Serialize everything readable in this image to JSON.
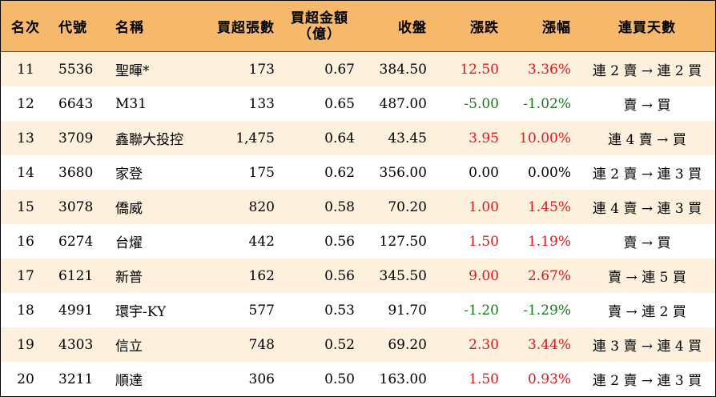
{
  "table": {
    "headers": {
      "rank": "名次",
      "code": "代號",
      "name": "名稱",
      "lots": "買超張數",
      "amount_line1": "買超金額",
      "amount_line2": "（億）",
      "close": "收盤",
      "change": "漲跌",
      "pct": "漲幅",
      "days": "連買天數"
    },
    "rows": [
      {
        "rank": "11",
        "code": "5536",
        "name": "聖暉*",
        "lots": "173",
        "amount": "0.67",
        "close": "384.50",
        "change": "12.50",
        "pct": "3.36%",
        "days": "連 2 賣 → 連 2 買"
      },
      {
        "rank": "12",
        "code": "6643",
        "name": "M31",
        "lots": "133",
        "amount": "0.65",
        "close": "487.00",
        "change": "-5.00",
        "pct": "-1.02%",
        "days": "賣 → 買"
      },
      {
        "rank": "13",
        "code": "3709",
        "name": "鑫聯大投控",
        "lots": "1,475",
        "amount": "0.64",
        "close": "43.45",
        "change": "3.95",
        "pct": "10.00%",
        "days": "連 4 賣 → 買"
      },
      {
        "rank": "14",
        "code": "3680",
        "name": "家登",
        "lots": "175",
        "amount": "0.62",
        "close": "356.00",
        "change": "0.00",
        "pct": "0.00%",
        "days": "連 2 賣 → 連 3 買"
      },
      {
        "rank": "15",
        "code": "3078",
        "name": "僑威",
        "lots": "820",
        "amount": "0.58",
        "close": "70.20",
        "change": "1.00",
        "pct": "1.45%",
        "days": "連 4 賣 → 連 3 買"
      },
      {
        "rank": "16",
        "code": "6274",
        "name": "台燿",
        "lots": "442",
        "amount": "0.56",
        "close": "127.50",
        "change": "1.50",
        "pct": "1.19%",
        "days": "賣 → 買"
      },
      {
        "rank": "17",
        "code": "6121",
        "name": "新普",
        "lots": "162",
        "amount": "0.56",
        "close": "345.50",
        "change": "9.00",
        "pct": "2.67%",
        "days": "賣 → 連 5 買"
      },
      {
        "rank": "18",
        "code": "4991",
        "name": "環宇-KY",
        "lots": "577",
        "amount": "0.53",
        "close": "91.70",
        "change": "-1.20",
        "pct": "-1.29%",
        "days": "賣 → 連 2 買"
      },
      {
        "rank": "19",
        "code": "4303",
        "name": "信立",
        "lots": "748",
        "amount": "0.52",
        "close": "69.20",
        "change": "2.30",
        "pct": "3.44%",
        "days": "連 3 賣 → 連 4 買"
      },
      {
        "rank": "20",
        "code": "3211",
        "name": "順達",
        "lots": "306",
        "amount": "0.50",
        "close": "163.00",
        "change": "1.50",
        "pct": "0.93%",
        "days": "連 2 賣 → 連 3 買"
      }
    ]
  },
  "colors": {
    "header_bg": "#f6b86b",
    "stripe_bg": "#fdf0dc",
    "up": "#e0191b",
    "down": "#1a7a1a"
  }
}
